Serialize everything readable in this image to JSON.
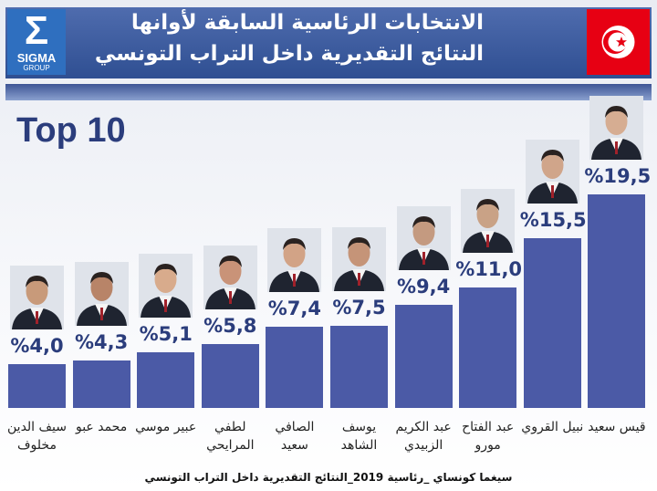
{
  "header": {
    "title_line1": "الانتخابات الرئاسية السابقة لأوانها",
    "title_line2": "النتائج التقديرية داخل التراب التونسي",
    "logo": "SIGMA",
    "logo_sub": "GROUP"
  },
  "chart_data": {
    "type": "bar",
    "subtitle": "Top 10",
    "categories": [
      "سيف الدين مخلوف",
      "محمد عبو",
      "عبير موسي",
      "لطفي المرايحي",
      "الصافي سعيد",
      "يوسف الشاهد",
      "عبد الكريم الزبيدي",
      "عبد الفتاح مورو",
      "نبيل القروي",
      "قيس سعيد"
    ],
    "values": [
      4.0,
      4.3,
      5.1,
      5.8,
      7.4,
      7.5,
      9.4,
      11.0,
      15.5,
      19.5
    ],
    "value_labels": [
      "%4,0",
      "%4,3",
      "%5,1",
      "%5,8",
      "%7,4",
      "%7,5",
      "%9,4",
      "%11,0",
      "%15,5",
      "%19,5"
    ],
    "color": "#4b5aa6"
  },
  "footer": "سيغما كونساي _رئاسية 2019_النتائج التقديرية داخل التراب التونسي"
}
